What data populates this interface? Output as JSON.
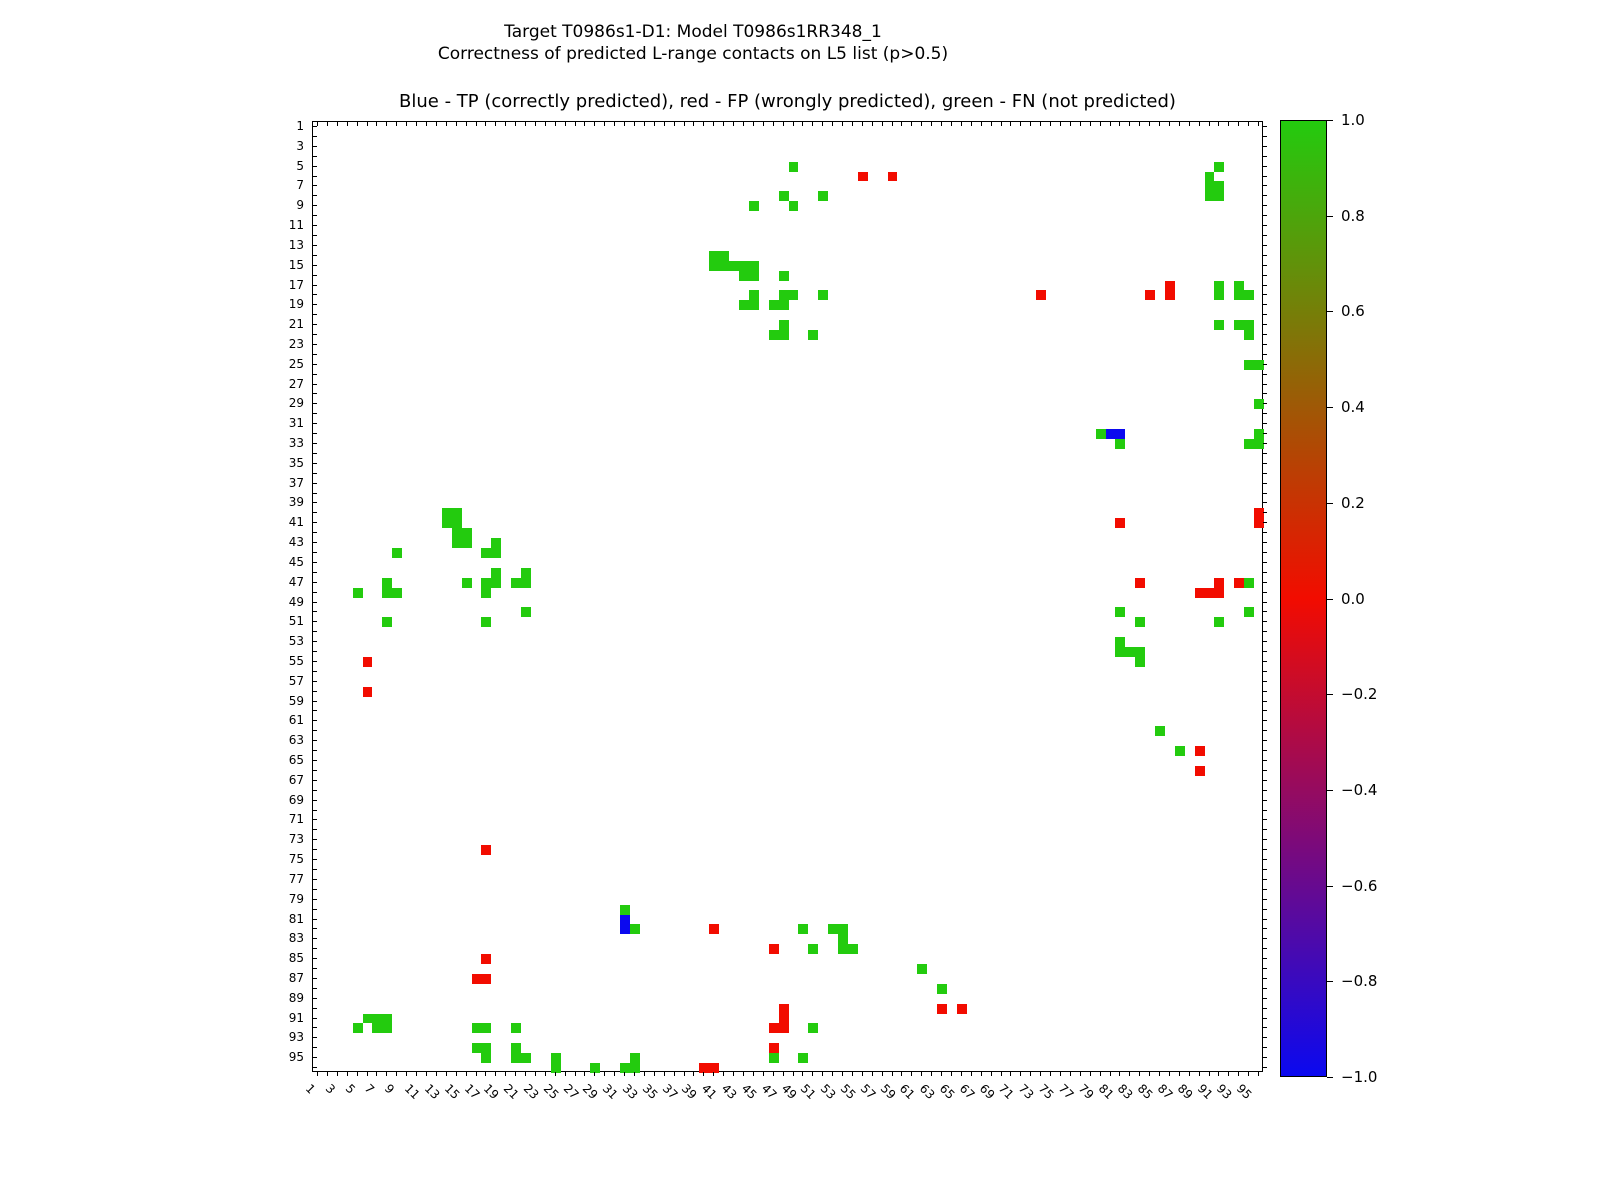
{
  "figure": {
    "suptitle_line1": "Target T0986s1-D1: Model T0986s1RR348_1",
    "suptitle_line2": "Correctness of predicted L-range contacts on L5 list (p>0.5)",
    "axes_title": "Blue - TP (correctly predicted), red - FP (wrongly predicted), green - FN (not predicted)"
  },
  "chart_data": {
    "type": "heatmap",
    "title": "Blue - TP (correctly predicted), red - FP (wrongly predicted), green - FN (not predicted)",
    "xlabel": "",
    "ylabel": "",
    "grid_size": 96,
    "axis_range": [
      1,
      96
    ],
    "grid": false,
    "x_tick_labels": [
      "1",
      "3",
      "5",
      "7",
      "9",
      "11",
      "13",
      "15",
      "17",
      "19",
      "21",
      "23",
      "25",
      "27",
      "29",
      "31",
      "33",
      "35",
      "37",
      "39",
      "41",
      "43",
      "45",
      "47",
      "49",
      "51",
      "53",
      "55",
      "57",
      "59",
      "61",
      "63",
      "65",
      "67",
      "69",
      "71",
      "73",
      "75",
      "77",
      "79",
      "81",
      "83",
      "85",
      "87",
      "89",
      "91",
      "93",
      "95"
    ],
    "y_tick_labels": [
      "1",
      "3",
      "5",
      "7",
      "9",
      "11",
      "13",
      "15",
      "17",
      "19",
      "21",
      "23",
      "25",
      "27",
      "29",
      "31",
      "33",
      "35",
      "37",
      "39",
      "41",
      "43",
      "45",
      "47",
      "49",
      "51",
      "53",
      "55",
      "57",
      "59",
      "61",
      "63",
      "65",
      "67",
      "69",
      "71",
      "73",
      "75",
      "77",
      "79",
      "81",
      "83",
      "85",
      "87",
      "89",
      "91",
      "93",
      "95"
    ],
    "legend_mapping": {
      "TP": {
        "meaning": "correctly predicted",
        "value": -1,
        "color_name": "blue"
      },
      "FP": {
        "meaning": "wrongly predicted",
        "value": 0,
        "color_name": "red"
      },
      "FN": {
        "meaning": "not predicted",
        "value": 1,
        "color_name": "green"
      }
    },
    "colors": {
      "TP": "#0b09ef",
      "FP": "#f20c00",
      "FN": "#23cb0e"
    },
    "colorbar": {
      "min": -1.0,
      "max": 1.0,
      "tick_labels": [
        "1.0",
        "0.8",
        "0.6",
        "0.4",
        "0.2",
        "0.0",
        "−0.2",
        "−0.4",
        "−0.6",
        "−0.8",
        "−1.0"
      ],
      "top_color": "#23cb0e",
      "mid_color": "#f20c00",
      "bottom_color": "#0b09ef"
    },
    "cells": [
      [
        5,
        49,
        "FN"
      ],
      [
        5,
        92,
        "FN"
      ],
      [
        6,
        56,
        "FP"
      ],
      [
        6,
        59,
        "FP"
      ],
      [
        6,
        91,
        "FN"
      ],
      [
        7,
        91,
        "FN"
      ],
      [
        7,
        92,
        "FN"
      ],
      [
        8,
        48,
        "FN"
      ],
      [
        8,
        52,
        "FN"
      ],
      [
        8,
        91,
        "FN"
      ],
      [
        8,
        92,
        "FN"
      ],
      [
        9,
        45,
        "FN"
      ],
      [
        9,
        49,
        "FN"
      ],
      [
        14,
        41,
        "FN"
      ],
      [
        14,
        42,
        "FN"
      ],
      [
        15,
        41,
        "FN"
      ],
      [
        15,
        42,
        "FN"
      ],
      [
        15,
        43,
        "FN"
      ],
      [
        15,
        44,
        "FN"
      ],
      [
        15,
        45,
        "FN"
      ],
      [
        16,
        44,
        "FN"
      ],
      [
        16,
        45,
        "FN"
      ],
      [
        16,
        48,
        "FN"
      ],
      [
        17,
        87,
        "FP"
      ],
      [
        17,
        92,
        "FN"
      ],
      [
        17,
        94,
        "FN"
      ],
      [
        18,
        45,
        "FN"
      ],
      [
        18,
        48,
        "FN"
      ],
      [
        18,
        49,
        "FN"
      ],
      [
        18,
        52,
        "FN"
      ],
      [
        18,
        74,
        "FP"
      ],
      [
        18,
        85,
        "FP"
      ],
      [
        18,
        87,
        "FP"
      ],
      [
        18,
        92,
        "FN"
      ],
      [
        18,
        94,
        "FN"
      ],
      [
        18,
        95,
        "FN"
      ],
      [
        19,
        44,
        "FN"
      ],
      [
        19,
        45,
        "FN"
      ],
      [
        19,
        47,
        "FN"
      ],
      [
        19,
        48,
        "FN"
      ],
      [
        21,
        48,
        "FN"
      ],
      [
        21,
        92,
        "FN"
      ],
      [
        21,
        94,
        "FN"
      ],
      [
        21,
        95,
        "FN"
      ],
      [
        22,
        47,
        "FN"
      ],
      [
        22,
        48,
        "FN"
      ],
      [
        22,
        51,
        "FN"
      ],
      [
        22,
        95,
        "FN"
      ],
      [
        25,
        95,
        "FN"
      ],
      [
        25,
        96,
        "FN"
      ],
      [
        29,
        96,
        "FN"
      ],
      [
        32,
        80,
        "FN"
      ],
      [
        32,
        81,
        "TP"
      ],
      [
        32,
        82,
        "TP"
      ],
      [
        32,
        96,
        "FN"
      ],
      [
        33,
        82,
        "FN"
      ],
      [
        33,
        95,
        "FN"
      ],
      [
        33,
        96,
        "FN"
      ],
      [
        40,
        14,
        "FN"
      ],
      [
        40,
        15,
        "FN"
      ],
      [
        40,
        96,
        "FP"
      ],
      [
        41,
        14,
        "FN"
      ],
      [
        41,
        15,
        "FN"
      ],
      [
        41,
        82,
        "FP"
      ],
      [
        41,
        96,
        "FP"
      ],
      [
        42,
        15,
        "FN"
      ],
      [
        42,
        16,
        "FN"
      ],
      [
        43,
        15,
        "FN"
      ],
      [
        43,
        16,
        "FN"
      ],
      [
        43,
        19,
        "FN"
      ],
      [
        44,
        9,
        "FN"
      ],
      [
        44,
        18,
        "FN"
      ],
      [
        44,
        19,
        "FN"
      ],
      [
        46,
        19,
        "FN"
      ],
      [
        46,
        22,
        "FN"
      ],
      [
        47,
        8,
        "FN"
      ],
      [
        47,
        16,
        "FN"
      ],
      [
        47,
        18,
        "FN"
      ],
      [
        47,
        19,
        "FN"
      ],
      [
        47,
        21,
        "FN"
      ],
      [
        47,
        22,
        "FN"
      ],
      [
        47,
        84,
        "FP"
      ],
      [
        47,
        92,
        "FP"
      ],
      [
        47,
        94,
        "FP"
      ],
      [
        47,
        95,
        "FN"
      ],
      [
        48,
        5,
        "FN"
      ],
      [
        48,
        8,
        "FN"
      ],
      [
        48,
        9,
        "FN"
      ],
      [
        48,
        18,
        "FN"
      ],
      [
        48,
        90,
        "FP"
      ],
      [
        48,
        91,
        "FP"
      ],
      [
        48,
        92,
        "FP"
      ],
      [
        50,
        22,
        "FN"
      ],
      [
        50,
        82,
        "FN"
      ],
      [
        50,
        95,
        "FN"
      ],
      [
        51,
        8,
        "FN"
      ],
      [
        51,
        18,
        "FN"
      ],
      [
        51,
        84,
        "FN"
      ],
      [
        51,
        92,
        "FN"
      ],
      [
        53,
        82,
        "FN"
      ],
      [
        54,
        82,
        "FN"
      ],
      [
        54,
        83,
        "FN"
      ],
      [
        54,
        84,
        "FN"
      ],
      [
        55,
        6,
        "FP"
      ],
      [
        55,
        84,
        "FN"
      ],
      [
        58,
        6,
        "FP"
      ],
      [
        62,
        86,
        "FN"
      ],
      [
        64,
        88,
        "FN"
      ],
      [
        64,
        90,
        "FP"
      ],
      [
        66,
        90,
        "FP"
      ],
      [
        74,
        18,
        "FP"
      ],
      [
        80,
        32,
        "FN"
      ],
      [
        81,
        32,
        "TP"
      ],
      [
        82,
        32,
        "TP"
      ],
      [
        82,
        33,
        "FN"
      ],
      [
        82,
        41,
        "FP"
      ],
      [
        82,
        50,
        "FN"
      ],
      [
        82,
        53,
        "FN"
      ],
      [
        82,
        54,
        "FN"
      ],
      [
        83,
        54,
        "FN"
      ],
      [
        84,
        47,
        "FP"
      ],
      [
        84,
        51,
        "FN"
      ],
      [
        84,
        54,
        "FN"
      ],
      [
        84,
        55,
        "FN"
      ],
      [
        85,
        18,
        "FP"
      ],
      [
        86,
        62,
        "FN"
      ],
      [
        87,
        17,
        "FP"
      ],
      [
        87,
        18,
        "FP"
      ],
      [
        88,
        64,
        "FN"
      ],
      [
        90,
        48,
        "FP"
      ],
      [
        90,
        64,
        "FP"
      ],
      [
        90,
        66,
        "FP"
      ],
      [
        91,
        6,
        "FN"
      ],
      [
        91,
        7,
        "FN"
      ],
      [
        91,
        8,
        "FN"
      ],
      [
        91,
        48,
        "FP"
      ],
      [
        92,
        5,
        "FN"
      ],
      [
        92,
        7,
        "FN"
      ],
      [
        92,
        8,
        "FN"
      ],
      [
        92,
        17,
        "FN"
      ],
      [
        92,
        18,
        "FN"
      ],
      [
        92,
        21,
        "FN"
      ],
      [
        92,
        47,
        "FP"
      ],
      [
        92,
        48,
        "FP"
      ],
      [
        92,
        51,
        "FN"
      ],
      [
        94,
        17,
        "FN"
      ],
      [
        94,
        18,
        "FN"
      ],
      [
        94,
        21,
        "FN"
      ],
      [
        94,
        47,
        "FP"
      ],
      [
        95,
        18,
        "FN"
      ],
      [
        95,
        21,
        "FN"
      ],
      [
        95,
        22,
        "FN"
      ],
      [
        95,
        25,
        "FN"
      ],
      [
        95,
        33,
        "FN"
      ],
      [
        95,
        47,
        "FN"
      ],
      [
        95,
        50,
        "FN"
      ],
      [
        96,
        25,
        "FN"
      ],
      [
        96,
        29,
        "FN"
      ],
      [
        96,
        32,
        "FN"
      ],
      [
        96,
        33,
        "FN"
      ],
      [
        96,
        40,
        "FP"
      ],
      [
        96,
        41,
        "FP"
      ]
    ]
  }
}
